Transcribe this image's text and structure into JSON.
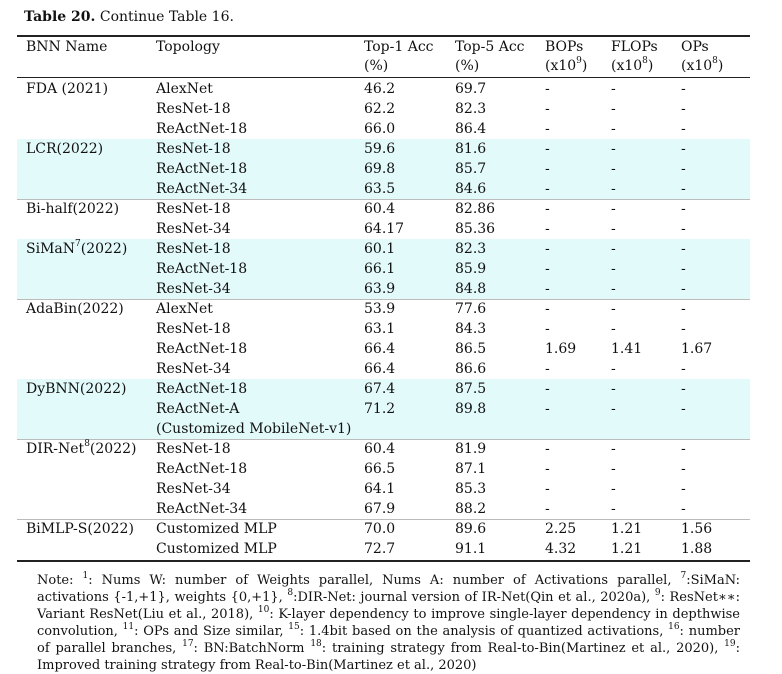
{
  "caption": {
    "label": "Table 20.",
    "text": "Continue Table 16."
  },
  "header": {
    "name": "BNN Name",
    "topology": "Topology",
    "top1": [
      "Top-1 Acc",
      "(%)"
    ],
    "top5": [
      "Top-5 Acc",
      "(%)"
    ],
    "bops": [
      "BOPs",
      "(x10",
      "9",
      ")"
    ],
    "flops": [
      "FLOPs",
      "(x10",
      "8",
      ")"
    ],
    "ops": [
      "OPs",
      "(x10",
      "8",
      ")"
    ]
  },
  "groups": [
    {
      "name": "FDA (2021)",
      "shaded": false,
      "rows": [
        [
          "AlexNet",
          "46.2",
          "69.7",
          "-",
          "-",
          "-"
        ],
        [
          "ResNet-18",
          "62.2",
          "82.3",
          "-",
          "-",
          "-"
        ],
        [
          "ReActNet-18",
          "66.0",
          "86.4",
          "-",
          "-",
          "-"
        ]
      ]
    },
    {
      "name": "LCR(2022)",
      "shaded": true,
      "rows": [
        [
          "ResNet-18",
          "59.6",
          "81.6",
          "-",
          "-",
          "-"
        ],
        [
          "ReActNet-18",
          "69.8",
          "85.7",
          "-",
          "-",
          "-"
        ],
        [
          "ReActNet-34",
          "63.5",
          "84.6",
          "-",
          "-",
          "-"
        ]
      ]
    },
    {
      "name": "Bi-half(2022)",
      "shaded": false,
      "rows": [
        [
          "ResNet-18",
          "60.4",
          "82.86",
          "-",
          "-",
          "-"
        ],
        [
          "ResNet-34",
          "64.17",
          "85.36",
          "-",
          "-",
          "-"
        ]
      ]
    },
    {
      "name": "SiMaN",
      "sup": "7",
      "suffix": "(2022)",
      "shaded": true,
      "rows": [
        [
          "ResNet-18",
          "60.1",
          "82.3",
          "-",
          "-",
          "-"
        ],
        [
          "ReActNet-18",
          "66.1",
          "85.9",
          "-",
          "-",
          "-"
        ],
        [
          "ResNet-34",
          "63.9",
          "84.8",
          "-",
          "-",
          "-"
        ]
      ]
    },
    {
      "name": "AdaBin(2022)",
      "shaded": false,
      "rows": [
        [
          "AlexNet",
          "53.9",
          "77.6",
          "-",
          "-",
          "-"
        ],
        [
          "ResNet-18",
          "63.1",
          "84.3",
          "-",
          "-",
          "-"
        ],
        [
          "ReActNet-18",
          "66.4",
          "86.5",
          "1.69",
          "1.41",
          "1.67"
        ],
        [
          "ResNet-34",
          "66.4",
          "86.6",
          "-",
          "-",
          "-"
        ]
      ]
    },
    {
      "name": "DyBNN(2022)",
      "shaded": true,
      "rows": [
        [
          "ReActNet-18",
          "67.4",
          "87.5",
          "-",
          "-",
          "-"
        ],
        [
          "ReActNet-A",
          "71.2",
          "89.8",
          "-",
          "-",
          "-"
        ],
        [
          "(Customized MobileNet-v1)",
          "",
          "",
          "",
          "",
          ""
        ]
      ]
    },
    {
      "name": "DIR-Net",
      "sup": "8",
      "suffix": "(2022)",
      "shaded": false,
      "rows": [
        [
          "ResNet-18",
          "60.4",
          "81.9",
          "-",
          "-",
          "-"
        ],
        [
          "ReActNet-18",
          "66.5",
          "87.1",
          "-",
          "-",
          "-"
        ],
        [
          "ResNet-34",
          "64.1",
          "85.3",
          "-",
          "-",
          "-"
        ],
        [
          "ReActNet-34",
          "67.9",
          "88.2",
          "-",
          "-",
          "-"
        ]
      ]
    },
    {
      "name": "BiMLP-S(2022)",
      "shaded": false,
      "rows": [
        [
          "Customized MLP",
          "70.0",
          "89.6",
          "2.25",
          "1.21",
          "1.56"
        ],
        [
          "Customized MLP",
          "72.7",
          "91.1",
          "4.32",
          "1.21",
          "1.88"
        ]
      ]
    }
  ],
  "note": [
    {
      "t": "Note: "
    },
    {
      "s": "1"
    },
    {
      "t": ": Nums W: number of Weights parallel, Nums A: number of Activations parallel, "
    },
    {
      "s": "7"
    },
    {
      "t": ":SiMaN: activations {-1,+1}, weights {0,+1}, "
    },
    {
      "s": "8"
    },
    {
      "t": ":DIR-Net: journal version of IR-Net(Qin et al., 2020a), "
    },
    {
      "s": "9"
    },
    {
      "t": ": ResNet∗∗: Variant ResNet(Liu et al., 2018), "
    },
    {
      "s": "10"
    },
    {
      "t": ": K-layer dependency to improve single-layer dependency in depthwise convolution, "
    },
    {
      "s": "11"
    },
    {
      "t": ": OPs and Size similar, "
    },
    {
      "s": "15"
    },
    {
      "t": ": 1.4bit based on the analysis of quantized activations, "
    },
    {
      "s": "16"
    },
    {
      "t": ": number of parallel branches, "
    },
    {
      "s": "17"
    },
    {
      "t": ": BN:BatchNorm "
    },
    {
      "s": "18"
    },
    {
      "t": ": training strategy from Real-to-Bin(Martinez et al., 2020), "
    },
    {
      "s": "19"
    },
    {
      "t": ": Improved training strategy from Real-to-Bin(Martinez et al., 2020)"
    }
  ]
}
